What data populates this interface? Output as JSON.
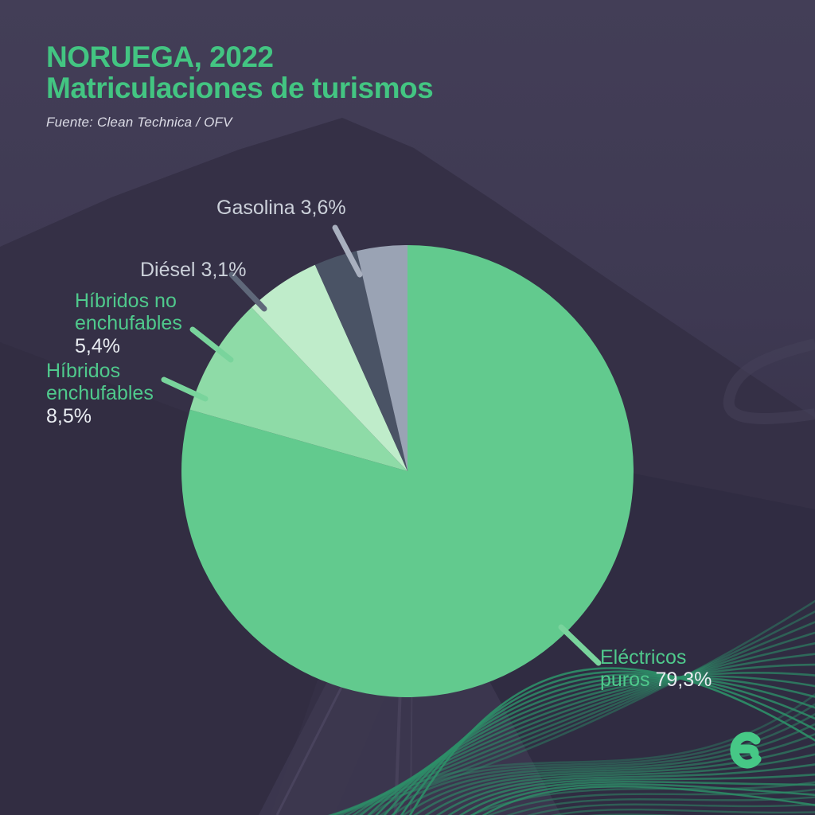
{
  "header": {
    "title_line1": "NORUEGA, 2022",
    "title_line2": "Matriculaciones de turismos",
    "source": "Fuente: Clean Technica / OFV"
  },
  "chart_data": {
    "type": "pie",
    "title": "NORUEGA, 2022 — Matriculaciones de turismos",
    "unit": "%",
    "direction": "clockwise",
    "start_angle_deg": 0,
    "legend_position": "callout-labels",
    "series": [
      {
        "label": "Eléctricos puros",
        "value": 79.3,
        "display_value": "79,3%",
        "color": "#62ca8e"
      },
      {
        "label": "Híbridos enchufables",
        "value": 8.5,
        "display_value": "8,5%",
        "color": "#8edba7"
      },
      {
        "label": "Híbridos no enchufables",
        "value": 5.4,
        "display_value": "5,4%",
        "color": "#bfecca"
      },
      {
        "label": "Diésel",
        "value": 3.1,
        "display_value": "3,1%",
        "color": "#4a5365"
      },
      {
        "label": "Gasolina",
        "value": 3.6,
        "display_value": "3,6%",
        "color": "#9aa3b4"
      }
    ]
  },
  "logo": {
    "letter": "e",
    "color": "#46c886"
  },
  "colors": {
    "background": "#403b54",
    "title": "#43c582",
    "green_label": "#4fc98c",
    "gray_label": "#ccd1da",
    "value_text": "#e9ecf1",
    "waves": "#2d8f68"
  }
}
